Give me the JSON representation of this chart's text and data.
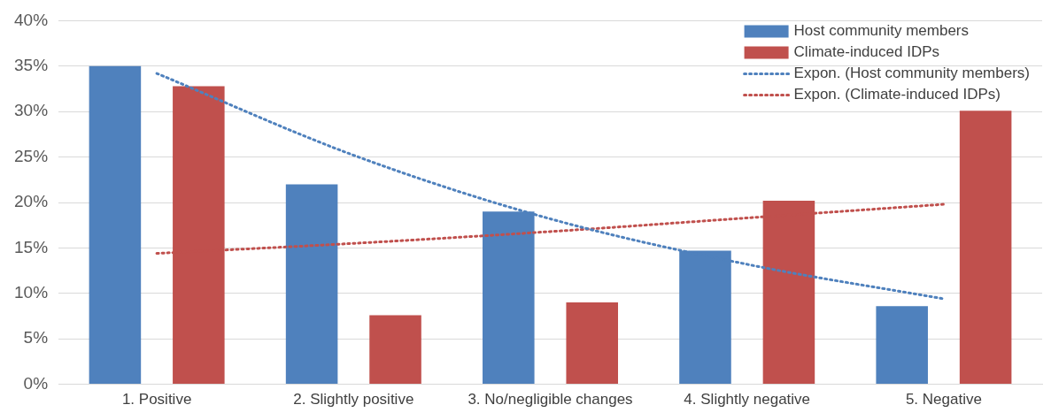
{
  "chart_data": {
    "type": "bar",
    "categories": [
      "1. Positive",
      "2. Slightly positive",
      "3. No/negligible changes",
      "4. Slightly negative",
      "5. Negative"
    ],
    "series": [
      {
        "name": "Host community members",
        "color": "#4f81bd",
        "values": [
          35,
          22,
          19,
          14.7,
          8.6
        ]
      },
      {
        "name": "Climate-induced IDPs",
        "color": "#c0504d",
        "values": [
          32.8,
          7.6,
          9,
          20.2,
          30.1
        ]
      },
      {
        "name": "Expon. (Host community members)",
        "type": "line",
        "line_style": "dotted",
        "marker": "none",
        "color": "#4f81bd",
        "values": [
          34.2,
          25.2,
          18.2,
          13.2,
          9.4
        ]
      },
      {
        "name": "Expon. (Climate-induced IDPs)",
        "type": "line",
        "line_style": "dotted",
        "marker": "none",
        "color": "#c0504d",
        "values": [
          14.4,
          15.5,
          16.8,
          18.3,
          19.8
        ]
      }
    ],
    "ylim": [
      0,
      40
    ],
    "yticks": [
      {
        "value": 0,
        "label": "0%"
      },
      {
        "value": 5,
        "label": "5%"
      },
      {
        "value": 10,
        "label": "10%"
      },
      {
        "value": 15,
        "label": "15%"
      },
      {
        "value": 20,
        "label": "20%"
      },
      {
        "value": 25,
        "label": "25%"
      },
      {
        "value": 30,
        "label": "30%"
      },
      {
        "value": 35,
        "label": "35%"
      },
      {
        "value": 40,
        "label": "40%"
      }
    ],
    "grid": "y",
    "legend": "top right"
  }
}
